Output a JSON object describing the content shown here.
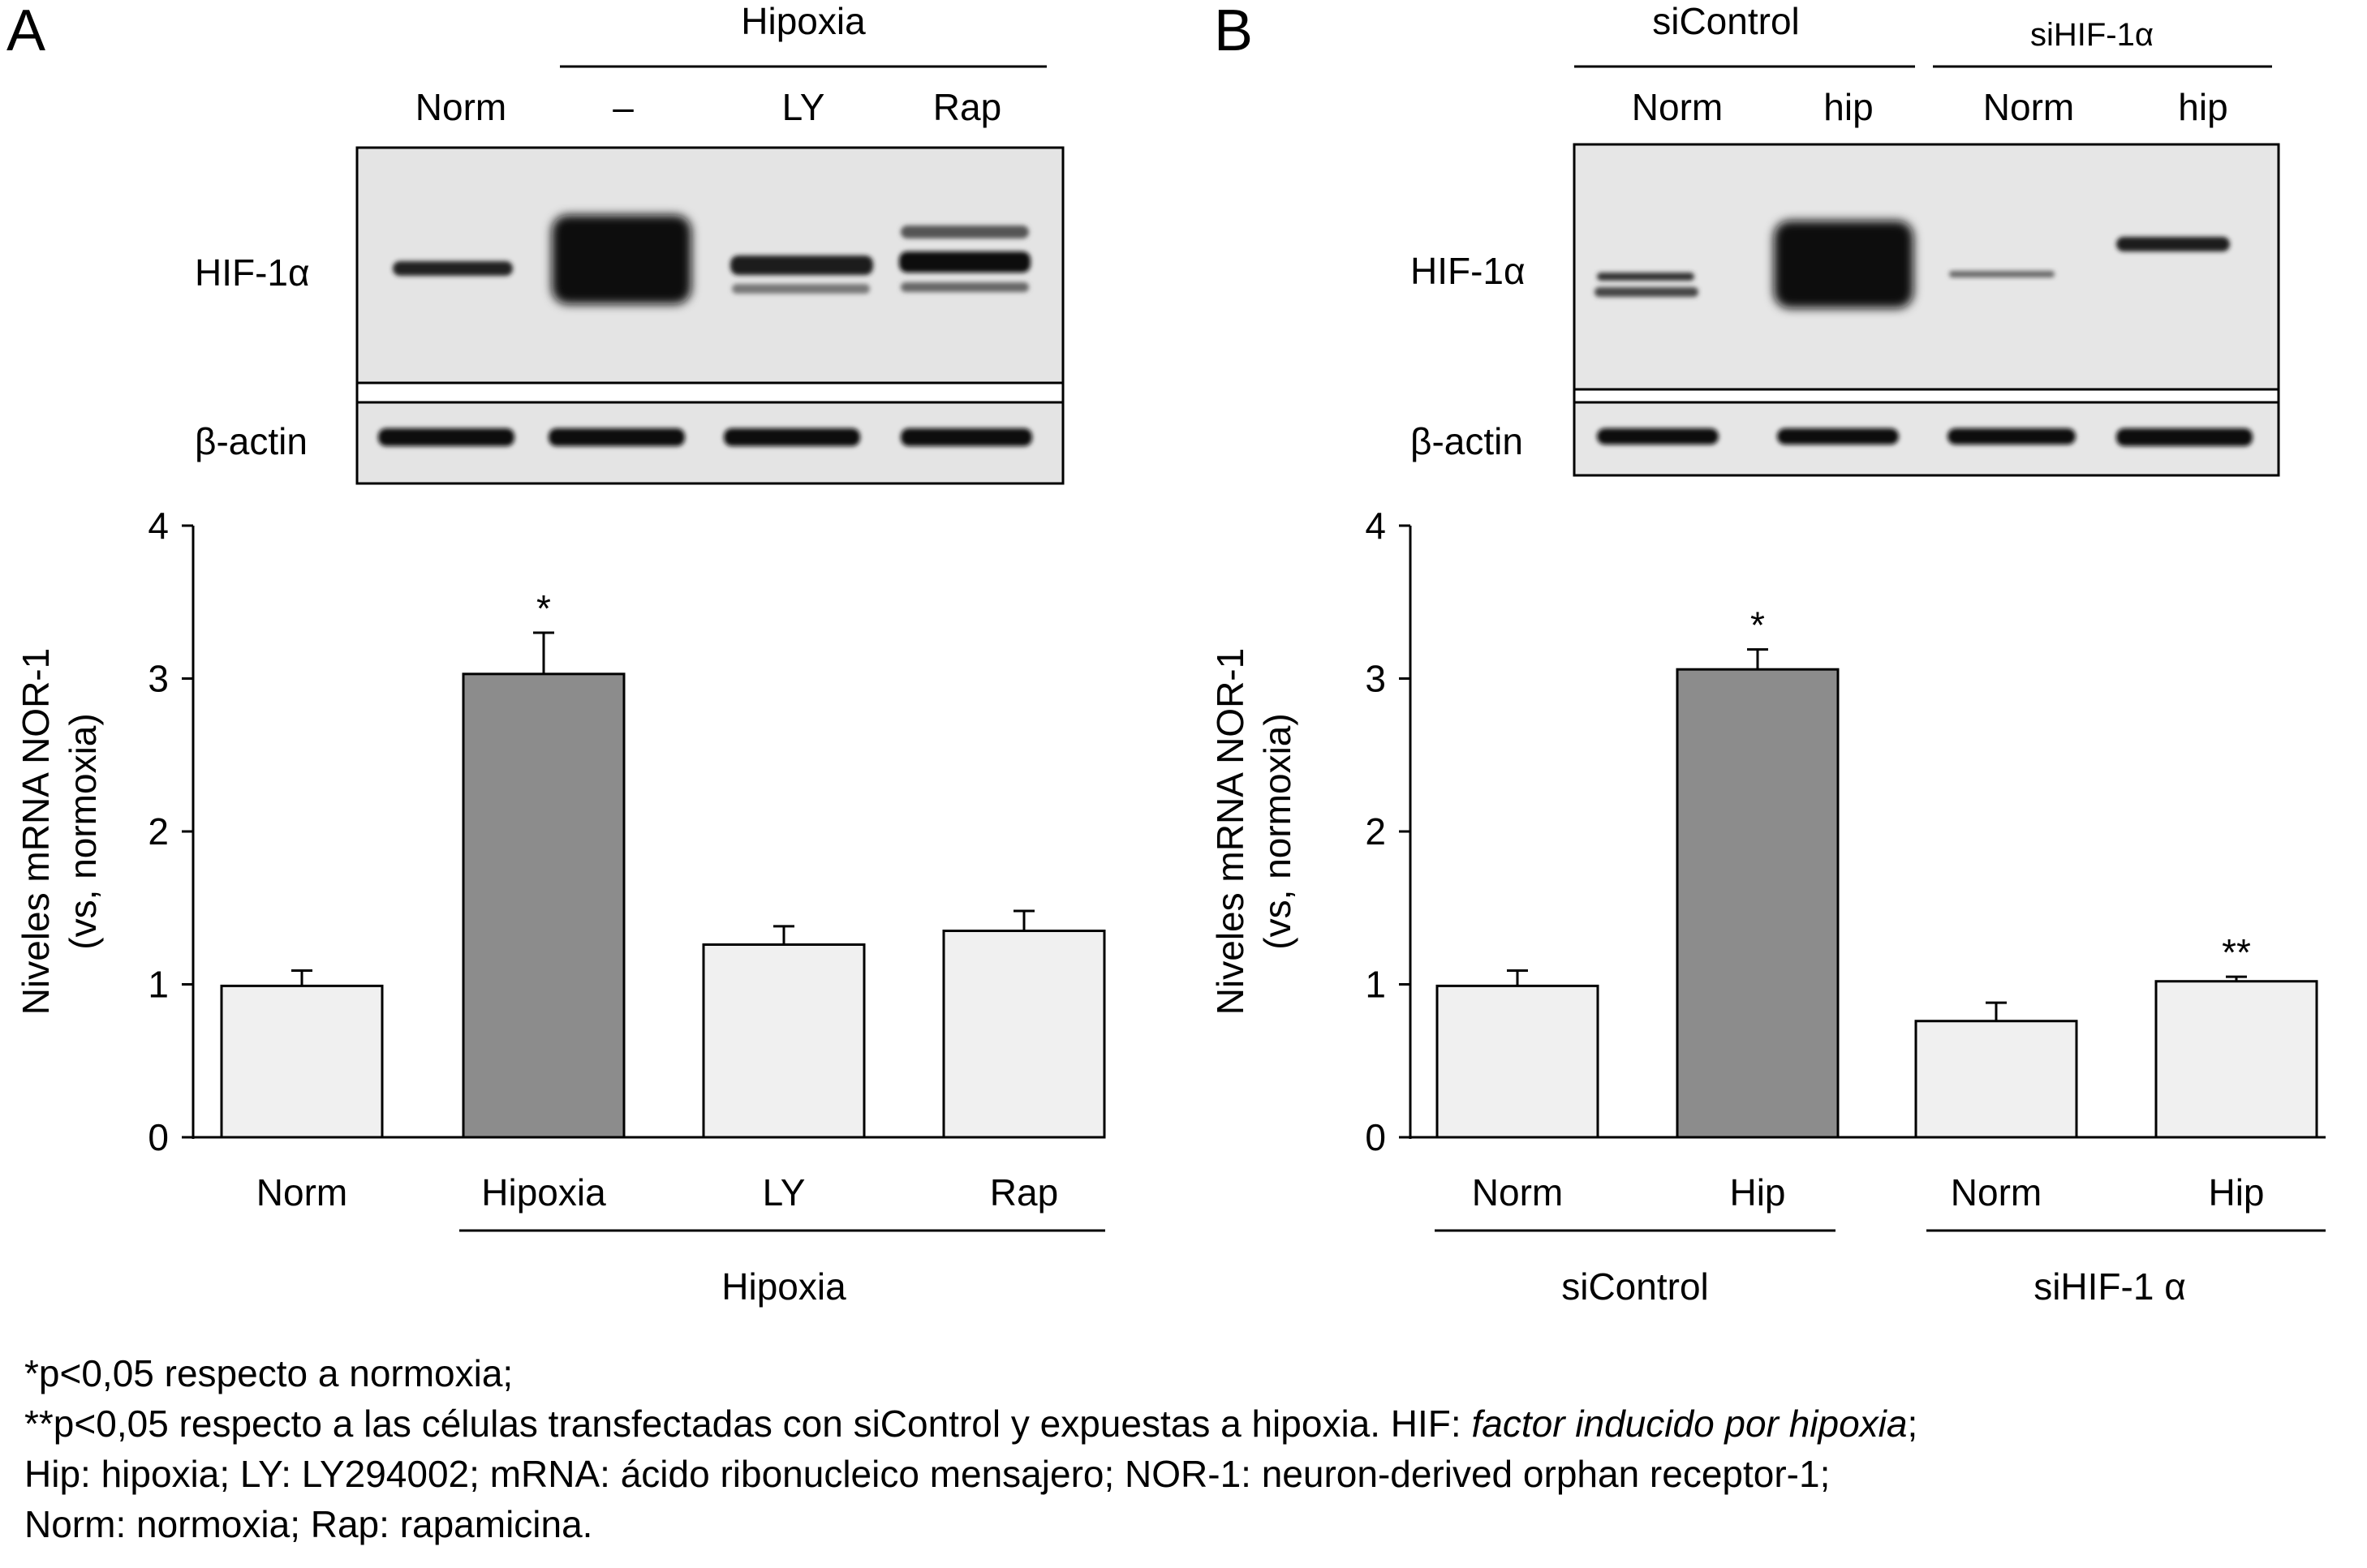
{
  "colors": {
    "bar_light": "#f0f0f0",
    "bar_dark": "#8c8c8c",
    "blot_bg": "#e6e6e6"
  },
  "panels": [
    {
      "label": "A",
      "blot": {
        "group_header": "Hipoxia",
        "lane_labels": [
          "Norm",
          "–",
          "LY",
          "Rap"
        ],
        "row_labels": [
          "HIF-1α",
          "β-actin"
        ],
        "hif_intensity": [
          0.55,
          1.0,
          0.7,
          0.75
        ]
      },
      "ylabel_line1": "Niveles mRNA NOR-1",
      "ylabel_line2": "(vs, normoxia)",
      "group_labels": [
        "Hipoxia"
      ]
    },
    {
      "label": "B",
      "blot": {
        "group_headers": [
          "siControl",
          "siHIF-1α"
        ],
        "lane_labels": [
          "Norm",
          "hip",
          "Norm",
          "hip"
        ],
        "row_labels": [
          "HIF-1α",
          "β-actin"
        ],
        "hif_intensity": [
          0.5,
          1.0,
          0.35,
          0.55
        ]
      },
      "ylabel_line1": "Niveles mRNA NOR-1",
      "ylabel_line2": "(vs, normoxia)",
      "group_labels": [
        "siControl",
        "siHIF-1 α"
      ]
    }
  ],
  "chart_data": [
    {
      "type": "bar",
      "panel": "A",
      "categories": [
        "Norm",
        "Hipoxia",
        "LY",
        "Rap"
      ],
      "values": [
        0.99,
        3.03,
        1.26,
        1.35
      ],
      "errors": [
        0.1,
        0.27,
        0.12,
        0.13
      ],
      "fill": [
        "light",
        "dark",
        "light",
        "light"
      ],
      "annotations": [
        "",
        "*",
        "",
        ""
      ],
      "ylabel": "Niveles mRNA NOR-1 (vs, normoxia)",
      "ylim": [
        0,
        4
      ],
      "yticks": [
        0,
        1,
        2,
        3,
        4
      ],
      "group_labels": [
        "Hipoxia"
      ]
    },
    {
      "type": "bar",
      "panel": "B",
      "categories": [
        "Norm",
        "Hip",
        "Norm",
        "Hip"
      ],
      "values": [
        0.99,
        3.06,
        0.76,
        1.02
      ],
      "errors": [
        0.1,
        0.13,
        0.12,
        0.03
      ],
      "fill": [
        "light",
        "dark",
        "light",
        "light"
      ],
      "annotations": [
        "",
        "*",
        "",
        "**"
      ],
      "ylabel": "Niveles mRNA NOR-1 (vs, normoxia)",
      "ylim": [
        0,
        4
      ],
      "yticks": [
        0,
        1,
        2,
        3,
        4
      ],
      "group_labels": [
        "siControl",
        "siHIF-1 α"
      ]
    }
  ],
  "footnote": {
    "line1": "*p<0,05 respecto a normoxia;",
    "line2_a": "**p<0,05 respecto a las células transfectadas con siControl y expuestas a hipoxia. HIF: ",
    "line2_b": "factor inducido por hipoxia",
    "line2_c": ";",
    "line3": "Hip: hipoxia; LY: LY294002; mRNA: ácido ribonucleico mensajero; NOR-1: neuron-derived orphan receptor-1;",
    "line4": "Norm: normoxia; Rap: rapamicina."
  }
}
